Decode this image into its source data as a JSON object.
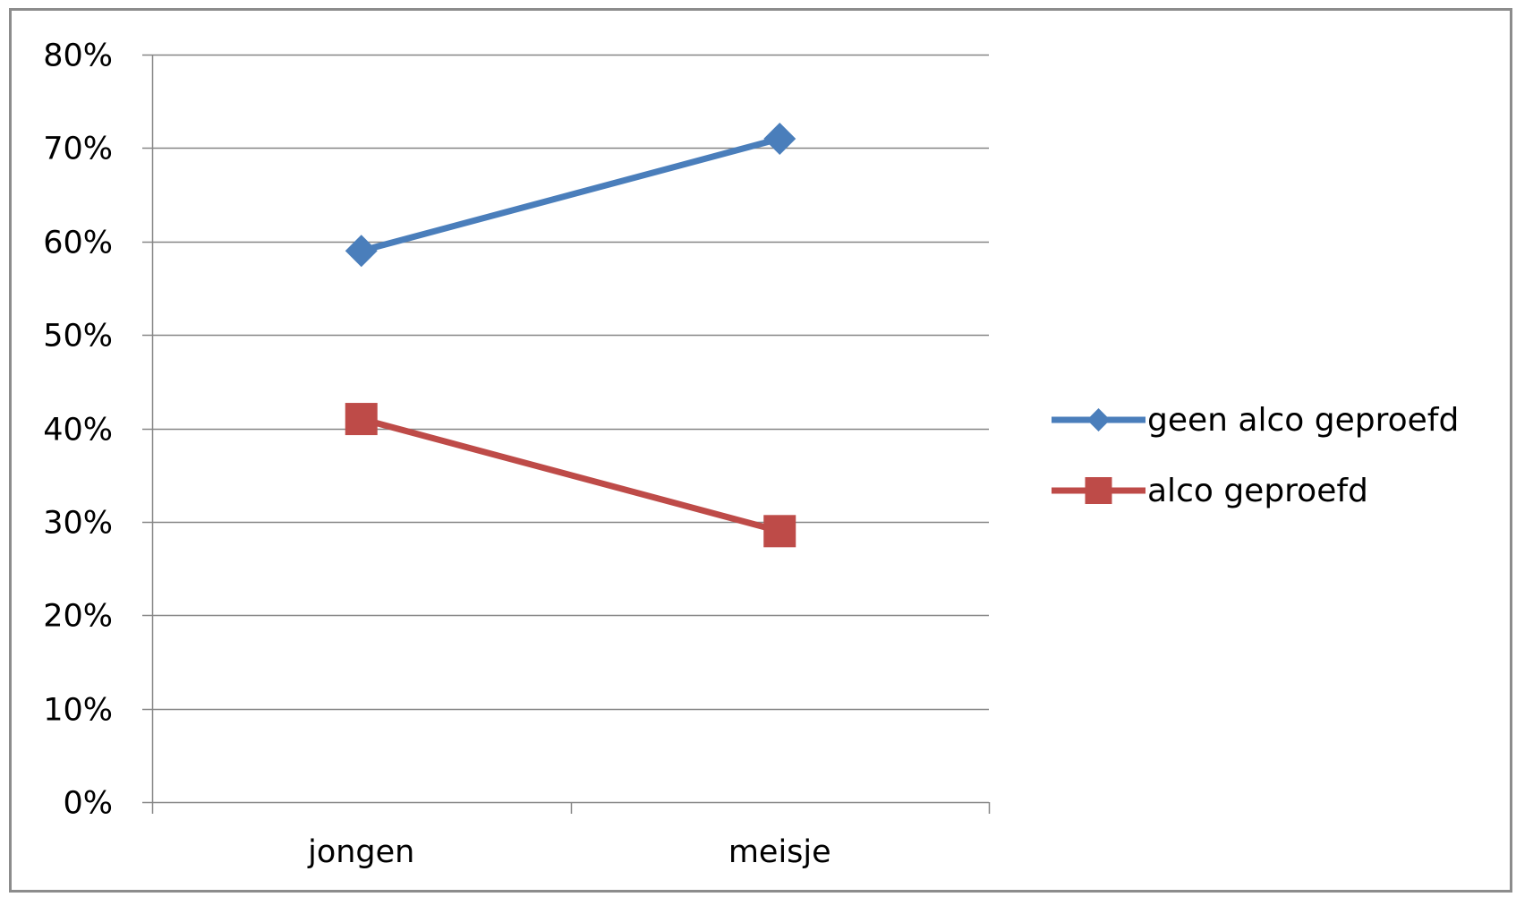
{
  "chart_data": {
    "type": "line",
    "categories": [
      "jongen",
      "meisje"
    ],
    "series": [
      {
        "name": "geen alco geproefd",
        "values": [
          0.59,
          0.71
        ],
        "color": "#4A7EBB",
        "marker": "diamond"
      },
      {
        "name": "alco geproefd",
        "values": [
          0.41,
          0.29
        ],
        "color": "#BE4B48",
        "marker": "square"
      }
    ],
    "y_ticks": [
      "0%",
      "10%",
      "20%",
      "30%",
      "40%",
      "50%",
      "60%",
      "70%",
      "80%"
    ],
    "ylim": [
      0,
      0.8
    ],
    "ytick_step": 0.1,
    "grid": true,
    "gridline_color": "#868686",
    "legend_position": "right",
    "title": "",
    "xlabel": "",
    "ylabel": ""
  }
}
